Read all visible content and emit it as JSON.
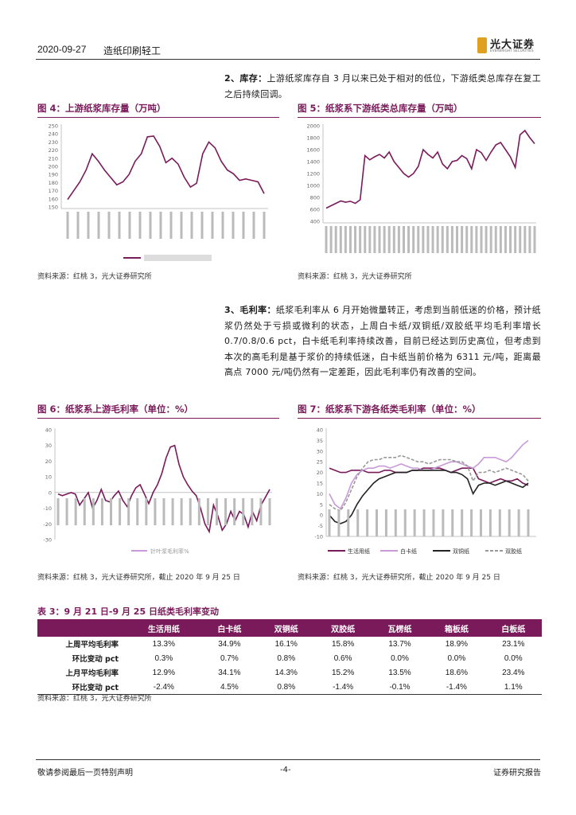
{
  "header": {
    "date": "2020-09-27",
    "section": "造纸印刷轻工",
    "logo_text": "光大证券",
    "logo_sub": "EVERBRIGHT SECURITIES"
  },
  "para2": {
    "lead": "2、库存：",
    "text": "上游纸浆库存自 3 月以来已处于相对的低位，下游纸类总库存在复工之后持续回调。"
  },
  "fig4": {
    "title": "图 4：上游纸浆库存量（万吨）",
    "source": "资料来源：红桃 3，光大证券研究所"
  },
  "fig5": {
    "title": "图 5：纸浆系下游纸类总库存量（万吨）",
    "source": "资料来源：红桃 3，光大证券研究所"
  },
  "para3": {
    "lead": "3、毛利率：",
    "text": "纸浆毛利率从 6 月开始微量转正，考虑到当前低迷的价格，预计纸浆仍然处于亏损或微利的状态，上周白卡纸/双铜纸/双胶纸平均毛利率增长 0.7/0.8/0.6 pct，白卡纸毛利率持续改善，目前已经达到历史高位，但考虑到本次的高毛利是基于浆价的持续低迷，白卡纸当前价格为 6311 元/吨，距离最高点 7000 元/吨仍然有一定差距，因此毛利率仍有改善的空间。"
  },
  "fig6": {
    "title": "图 6：纸浆系上游毛利率（单位：%）",
    "source": "资料来源：红桃 3，光大证券研究所，截止 2020 年 9 月 25 日"
  },
  "fig7": {
    "title": "图 7：纸浆系下游各纸类毛利率（单位：%）",
    "source": "资料来源：红桃 3，光大证券研究所，截止 2020 年 9 月 25 日"
  },
  "chart_data": [
    {
      "type": "line",
      "id": "fig4",
      "ylim": [
        150,
        260
      ],
      "y_ticks": [
        "250",
        "240",
        "230",
        "220",
        "210",
        "200",
        "190",
        "180",
        "170",
        "160",
        "150"
      ],
      "values": [
        160,
        172,
        184,
        200,
        222,
        212,
        200,
        190,
        180,
        184,
        194,
        212,
        222,
        245,
        246,
        232,
        210,
        216,
        208,
        190,
        177,
        182,
        222,
        238,
        230,
        212,
        200,
        195,
        186,
        188,
        186,
        184,
        168
      ]
    },
    {
      "type": "line",
      "id": "fig5",
      "ylim": [
        400,
        2000
      ],
      "y_ticks": [
        "2000",
        "1800",
        "1600",
        "1400",
        "1200",
        "1000",
        "800",
        "600",
        "400"
      ],
      "values": [
        620,
        660,
        700,
        740,
        720,
        735,
        700,
        760,
        1500,
        1430,
        1480,
        1520,
        1460,
        1560,
        1400,
        1300,
        1200,
        1140,
        1200,
        1320,
        1600,
        1520,
        1460,
        1560,
        1360,
        1280,
        1400,
        1420,
        1500,
        1450,
        1280,
        1600,
        1550,
        1420,
        1560,
        1680,
        1720,
        1600,
        1480,
        1300,
        1850,
        1920,
        1800,
        1700
      ]
    },
    {
      "type": "line",
      "id": "fig6",
      "ylim": [
        -30,
        40
      ],
      "y_ticks": [
        "40",
        "30",
        "20",
        "10",
        "0",
        "-10",
        "-20",
        "-30"
      ],
      "legend": [
        "针叶浆毛利率%"
      ],
      "values": [
        -1,
        -2,
        -1,
        0,
        -1,
        -8,
        -4,
        0,
        -10,
        -5,
        2,
        -5,
        -6,
        -2,
        1,
        -5,
        -9,
        -2,
        3,
        5,
        -1,
        -7,
        0,
        5,
        12,
        22,
        29,
        30,
        18,
        10,
        5,
        1,
        -2,
        -10,
        -20,
        -25,
        -8,
        -15,
        -24,
        -20,
        -12,
        -18,
        -12,
        -14,
        -22,
        -12,
        -18,
        -8,
        -3,
        2
      ]
    },
    {
      "type": "line",
      "id": "fig7",
      "ylim": [
        -10,
        40
      ],
      "y_ticks": [
        "40",
        "35",
        "30",
        "25",
        "20",
        "15",
        "10",
        "5",
        "0",
        "-5",
        "-10"
      ],
      "legend": [
        "生活用纸",
        "白卡纸",
        "双铜纸",
        "双胶纸"
      ],
      "series": [
        {
          "name": "生活用纸",
          "color": "#7a1a5a",
          "values": [
            22,
            21,
            20,
            20,
            21,
            21,
            21,
            20,
            20,
            20,
            21,
            21,
            20,
            20,
            20,
            21,
            21,
            22,
            22,
            22,
            22,
            21,
            20,
            21,
            22,
            22,
            22,
            17,
            16,
            15,
            16,
            17,
            16,
            16,
            17,
            15,
            14
          ]
        },
        {
          "name": "白卡纸",
          "color": "#c89ad8",
          "values": [
            10,
            5,
            3,
            8,
            15,
            19,
            21,
            22,
            22,
            23,
            23,
            22,
            23,
            24,
            23,
            22,
            22,
            21,
            21,
            22,
            23,
            24,
            25,
            25,
            24,
            23,
            22,
            24,
            27,
            27,
            27,
            26,
            25,
            27,
            30,
            33,
            35
          ]
        },
        {
          "name": "双铜纸",
          "color": "#222222",
          "values": [
            0,
            -3,
            -4,
            -3,
            0,
            5,
            9,
            12,
            15,
            17,
            18,
            19,
            20,
            20,
            20,
            21,
            21,
            21,
            21,
            21,
            21,
            21,
            20,
            20,
            19,
            17,
            10,
            14,
            15,
            15,
            14,
            15,
            16,
            15,
            14,
            13,
            15
          ]
        },
        {
          "name": "双胶纸",
          "color": "#999999",
          "values": [
            5,
            3,
            2,
            6,
            12,
            18,
            22,
            25,
            26,
            26,
            27,
            27,
            27,
            28,
            27,
            26,
            25,
            25,
            24,
            25,
            26,
            26,
            26,
            25,
            25,
            23,
            16,
            20,
            20,
            21,
            20,
            21,
            22,
            21,
            20,
            19,
            16
          ]
        }
      ]
    }
  ],
  "table3": {
    "title": "表 3：9 月 21 日-9 月 25 日纸类毛利率变动",
    "headers": [
      "生活用纸",
      "白卡纸",
      "双铜纸",
      "双胶纸",
      "瓦楞纸",
      "箱板纸",
      "白板纸"
    ],
    "rows": [
      {
        "label": "上周平均毛利率",
        "cells": [
          "13.3%",
          "34.9%",
          "16.1%",
          "15.8%",
          "13.7%",
          "18.9%",
          "23.1%"
        ]
      },
      {
        "label": "环比变动 pct",
        "cells": [
          "0.3%",
          "0.7%",
          "0.8%",
          "0.6%",
          "0.0%",
          "0.0%",
          "0.0%"
        ]
      },
      {
        "label": "上月平均毛利率",
        "cells": [
          "12.9%",
          "34.1%",
          "14.3%",
          "15.2%",
          "13.5%",
          "18.6%",
          "23.4%"
        ]
      },
      {
        "label": "环比变动 pct",
        "cells": [
          "-2.4%",
          "4.5%",
          "0.8%",
          "-1.4%",
          "-0.1%",
          "-1.4%",
          "1.1%"
        ]
      }
    ],
    "source": "资料来源：红桃 3，光大证券研究所"
  },
  "footer": {
    "left": "敬请参阅最后一页特别声明",
    "center": "-4-",
    "right": "证券研究报告"
  }
}
